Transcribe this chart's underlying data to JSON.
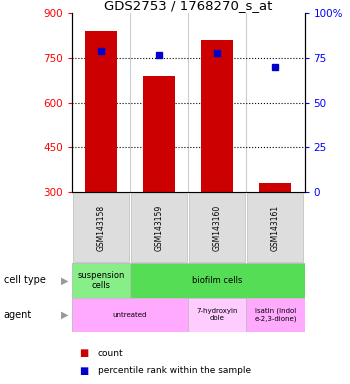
{
  "title": "GDS2753 / 1768270_s_at",
  "samples": [
    "GSM143158",
    "GSM143159",
    "GSM143160",
    "GSM143161"
  ],
  "counts": [
    840,
    690,
    810,
    330
  ],
  "percentiles": [
    79,
    77,
    78,
    70
  ],
  "ylim_left": [
    300,
    900
  ],
  "ylim_right": [
    0,
    100
  ],
  "left_ticks": [
    300,
    450,
    600,
    750,
    900
  ],
  "right_ticks": [
    0,
    25,
    50,
    75,
    100
  ],
  "right_tick_labels": [
    "0",
    "25",
    "50",
    "75",
    "100%"
  ],
  "bar_color": "#cc0000",
  "dot_color": "#0000cc",
  "cell_type_row": [
    {
      "label": "suspension\ncells",
      "color": "#88ee88",
      "span": [
        0,
        1
      ]
    },
    {
      "label": "biofilm cells",
      "color": "#55dd55",
      "span": [
        1,
        4
      ]
    }
  ],
  "agent_row": [
    {
      "label": "untreated",
      "color": "#ffaaff",
      "span": [
        0,
        2
      ]
    },
    {
      "label": "7-hydroxyin\ndole",
      "color": "#ffccff",
      "span": [
        2,
        3
      ]
    },
    {
      "label": "isatin (indol\ne-2,3-dione)",
      "color": "#ffaaff",
      "span": [
        3,
        4
      ]
    }
  ],
  "row_labels": [
    "cell type",
    "agent"
  ],
  "legend_items": [
    {
      "color": "#cc0000",
      "label": "count"
    },
    {
      "color": "#0000cc",
      "label": "percentile rank within the sample"
    }
  ]
}
